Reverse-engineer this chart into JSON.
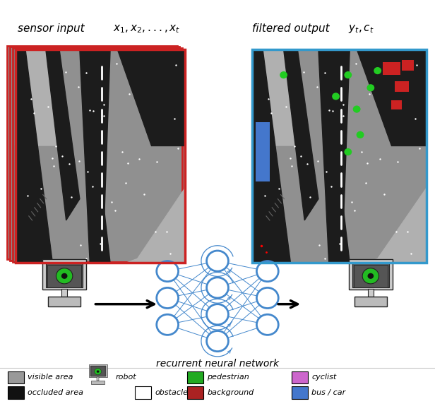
{
  "sensor_input_label": "sensor input",
  "sensor_input_formula": "$x_1, x_2, ...,x_t$",
  "filtered_output_label": "filtered output",
  "filtered_output_formula": "$y_t, c_t$",
  "rnn_label": "recurrent neural network",
  "left_border_color": "#cc2222",
  "right_border_color": "#3399cc",
  "background_color": "#ffffff",
  "node_color": "#4488cc",
  "legend_items": [
    {
      "label": "visible area",
      "color": "#999999",
      "outlined": false
    },
    {
      "label": "occluded area",
      "color": "#111111",
      "outlined": false
    },
    {
      "label": "pedestrian",
      "color": "#22aa22",
      "outlined": false
    },
    {
      "label": "background",
      "color": "#aa2222",
      "outlined": false
    },
    {
      "label": "cyclist",
      "color": "#cc66cc",
      "outlined": false
    },
    {
      "label": "bus / car",
      "color": "#4477cc",
      "outlined": false
    },
    {
      "label": "obstacle",
      "color": "#ffffff",
      "outlined": true
    }
  ]
}
